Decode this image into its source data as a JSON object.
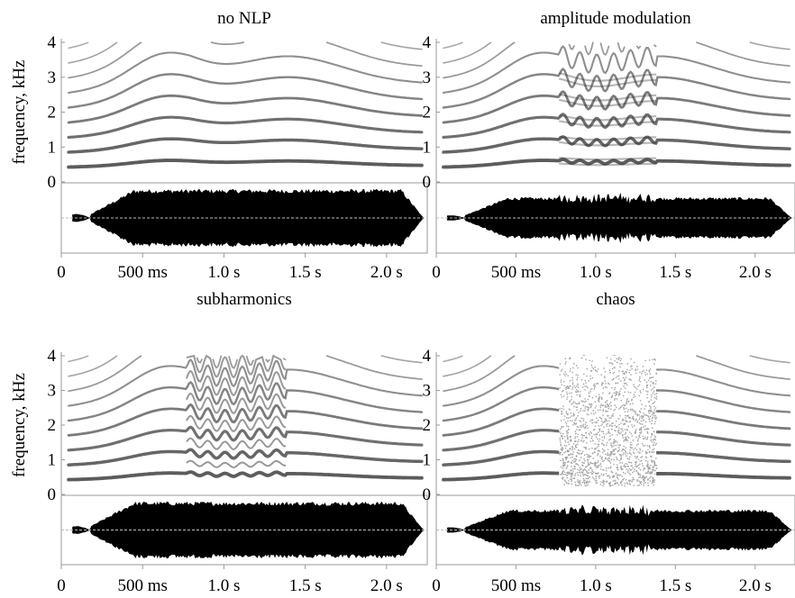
{
  "panels": [
    {
      "title": "no NLP",
      "regime": "none"
    },
    {
      "title": "amplitude modulation",
      "regime": "am"
    },
    {
      "title": "subharmonics",
      "regime": "sub"
    },
    {
      "title": "chaos",
      "regime": "chaos"
    }
  ],
  "y_axis": {
    "label": "frequency, kHz",
    "ticks": [
      "0",
      "1",
      "2",
      "3",
      "4"
    ],
    "max_khz": 4
  },
  "x_axis": {
    "ticks": [
      {
        "t": 0,
        "label": "0"
      },
      {
        "t": 0.5,
        "label": "500 ms"
      },
      {
        "t": 1.0,
        "label": "1.0 s"
      },
      {
        "t": 1.5,
        "label": "1.5 s"
      },
      {
        "t": 2.0,
        "label": "2.0 s"
      }
    ],
    "duration_s": 2.25
  },
  "nlp_segment_s": [
    0.77,
    1.38
  ],
  "colors": {
    "ink": "#000000",
    "harmonic": "#333333",
    "frame": "#9a9a9a",
    "zero_line": "#bbbbbb"
  }
}
